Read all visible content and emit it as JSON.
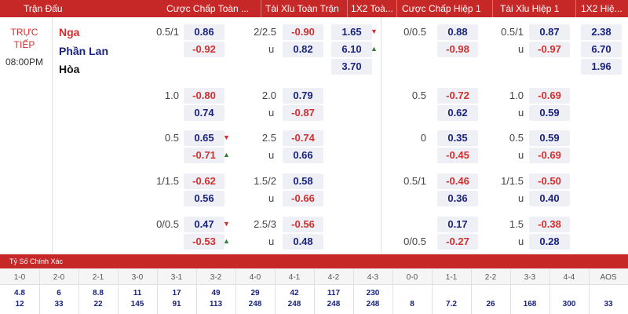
{
  "header": {
    "match_label": "Trận Đấu",
    "ft_handicap": "Cược Chấp Toàn ...",
    "ft_ou": "Tài Xỉu Toàn Trận",
    "ft_1x2": "1X2 Toà...",
    "h1_handicap": "Cược Chấp Hiệp 1",
    "h1_ou": "Tài Xỉu Hiệp 1",
    "h1_1x2": "1X2 Hiệ..."
  },
  "match": {
    "status_line1": "TRỰC",
    "status_line2": "TIẾP",
    "time": "08:00PM",
    "home": "Nga",
    "away": "Phần Lan",
    "draw": "Hòa"
  },
  "ft_1x2": {
    "home": "1.65",
    "away": "6.10",
    "draw": "3.70"
  },
  "h1_1x2": {
    "home": "2.38",
    "away": "6.70",
    "draw": "1.96"
  },
  "rows": [
    {
      "ft_hdp": "0.5/1",
      "ft_hdp_a": "0.86",
      "ft_hdp_b": "-0.92",
      "ft_ou": "2/2.5",
      "ft_u": "u",
      "ft_ou_a": "-0.90",
      "ft_ou_b": "0.82",
      "h1_hdp": "0/0.5",
      "h1_hdp_a": "0.88",
      "h1_hdp_b": "-0.98",
      "h1_ou": "0.5/1",
      "h1_u": "u",
      "h1_ou_a": "0.87",
      "h1_ou_b": "-0.97"
    },
    {
      "ft_hdp": "1.0",
      "ft_hdp_a": "-0.80",
      "ft_hdp_b": "0.74",
      "ft_ou": "2.0",
      "ft_u": "u",
      "ft_ou_a": "0.79",
      "ft_ou_b": "-0.87",
      "h1_hdp": "0.5",
      "h1_hdp_a": "-0.72",
      "h1_hdp_b": "0.62",
      "h1_ou": "1.0",
      "h1_u": "u",
      "h1_ou_a": "-0.69",
      "h1_ou_b": "0.59"
    },
    {
      "ft_hdp": "0.5",
      "ft_hdp_a": "0.65",
      "ft_hdp_b": "-0.71",
      "ft_ou": "2.5",
      "ft_u": "u",
      "ft_ou_a": "-0.74",
      "ft_ou_b": "0.66",
      "h1_hdp": "0",
      "h1_hdp_a": "0.35",
      "h1_hdp_b": "-0.45",
      "h1_ou": "0.5",
      "h1_u": "u",
      "h1_ou_a": "0.59",
      "h1_ou_b": "-0.69"
    },
    {
      "ft_hdp": "1/1.5",
      "ft_hdp_a": "-0.62",
      "ft_hdp_b": "0.56",
      "ft_ou": "1.5/2",
      "ft_u": "u",
      "ft_ou_a": "0.58",
      "ft_ou_b": "-0.66",
      "h1_hdp": "0.5/1",
      "h1_hdp_a": "-0.46",
      "h1_hdp_b": "0.36",
      "h1_ou": "1/1.5",
      "h1_u": "u",
      "h1_ou_a": "-0.50",
      "h1_ou_b": "0.40"
    },
    {
      "ft_hdp": "0/0.5",
      "ft_hdp_a": "0.47",
      "ft_hdp_b": "-0.53",
      "ft_ou": "2.5/3",
      "ft_u": "u",
      "ft_ou_a": "-0.56",
      "ft_ou_b": "0.48",
      "h1_hdp": "",
      "h1_hdp_b_label": "0/0.5",
      "h1_hdp_a": "0.17",
      "h1_hdp_b": "-0.27",
      "h1_ou": "1.5",
      "h1_u": "u",
      "h1_ou_a": "-0.38",
      "h1_ou_b": "0.28"
    }
  ],
  "correct_score": {
    "title": "Tỷ Số Chính Xác",
    "labels": [
      "1-0",
      "2-0",
      "2-1",
      "3-0",
      "3-1",
      "3-2",
      "4-0",
      "4-1",
      "4-2",
      "4-3",
      "0-0",
      "1-1",
      "2-2",
      "3-3",
      "4-4",
      "AOS"
    ],
    "top": [
      "4.8",
      "6",
      "8.8",
      "11",
      "17",
      "49",
      "29",
      "42",
      "117",
      "230",
      "",
      "",
      "",
      "",
      "",
      ""
    ],
    "bottom": [
      "12",
      "33",
      "22",
      "145",
      "91",
      "113",
      "248",
      "248",
      "248",
      "248",
      "8",
      "7.2",
      "26",
      "168",
      "300",
      "33"
    ]
  },
  "colors": {
    "header_bg": "#c62828",
    "odd_blue": "#1a237e",
    "odd_red": "#d32f2f",
    "up_arrow": "#2e7d32"
  }
}
